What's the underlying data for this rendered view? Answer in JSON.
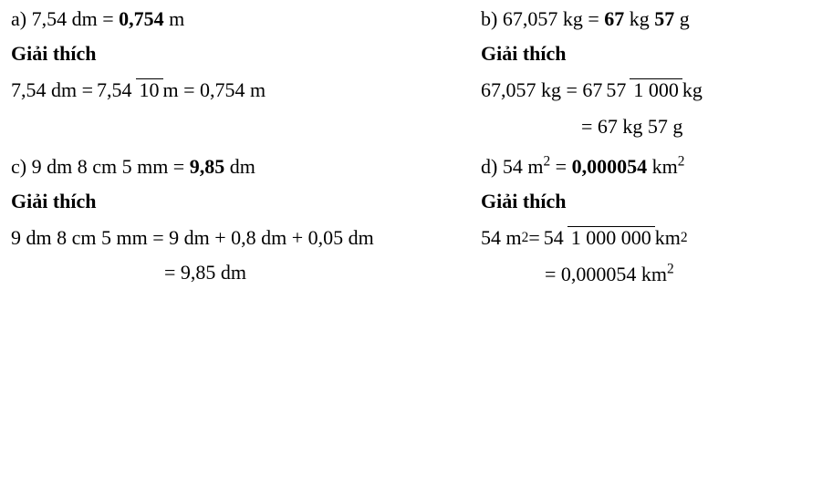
{
  "font": {
    "family": "Times New Roman",
    "size_pt": 22,
    "color": "#000000"
  },
  "background_color": "#ffffff",
  "heading_label": "Giải thích",
  "a": {
    "problem_prefix": "a) 7,54 dm = ",
    "answer": "0,754",
    "problem_suffix": " m",
    "work_prefix": "7,54 dm = ",
    "frac_num": "7,54",
    "frac_den": "10",
    "work_mid": " m = 0,754 m"
  },
  "b": {
    "problem_prefix": "b) 67,057 kg = ",
    "answer1": "67",
    "mid": " kg ",
    "answer2": "57",
    "problem_suffix": " g",
    "work_prefix": "67,057 kg = 67",
    "frac_num": "57",
    "frac_den": "1 000",
    "work_suffix": "kg",
    "result": "= 67 kg 57 g"
  },
  "c": {
    "problem_prefix": "c) 9 dm 8 cm 5 mm = ",
    "answer": "9,85",
    "problem_suffix": " dm",
    "work1": "9 dm 8 cm 5 mm = 9 dm + 0,8 dm + 0,05 dm",
    "work2": "= 9,85 dm"
  },
  "d": {
    "problem_prefix": "d) 54 m",
    "problem_mid": " = ",
    "answer": "0,000054",
    "problem_suffix": " km",
    "work_prefix": "54 m",
    "work_eq": " = ",
    "frac_num": "54",
    "frac_den": "1 000 000",
    "work_suffix": " km",
    "result_prefix": "= 0,000054 km"
  }
}
